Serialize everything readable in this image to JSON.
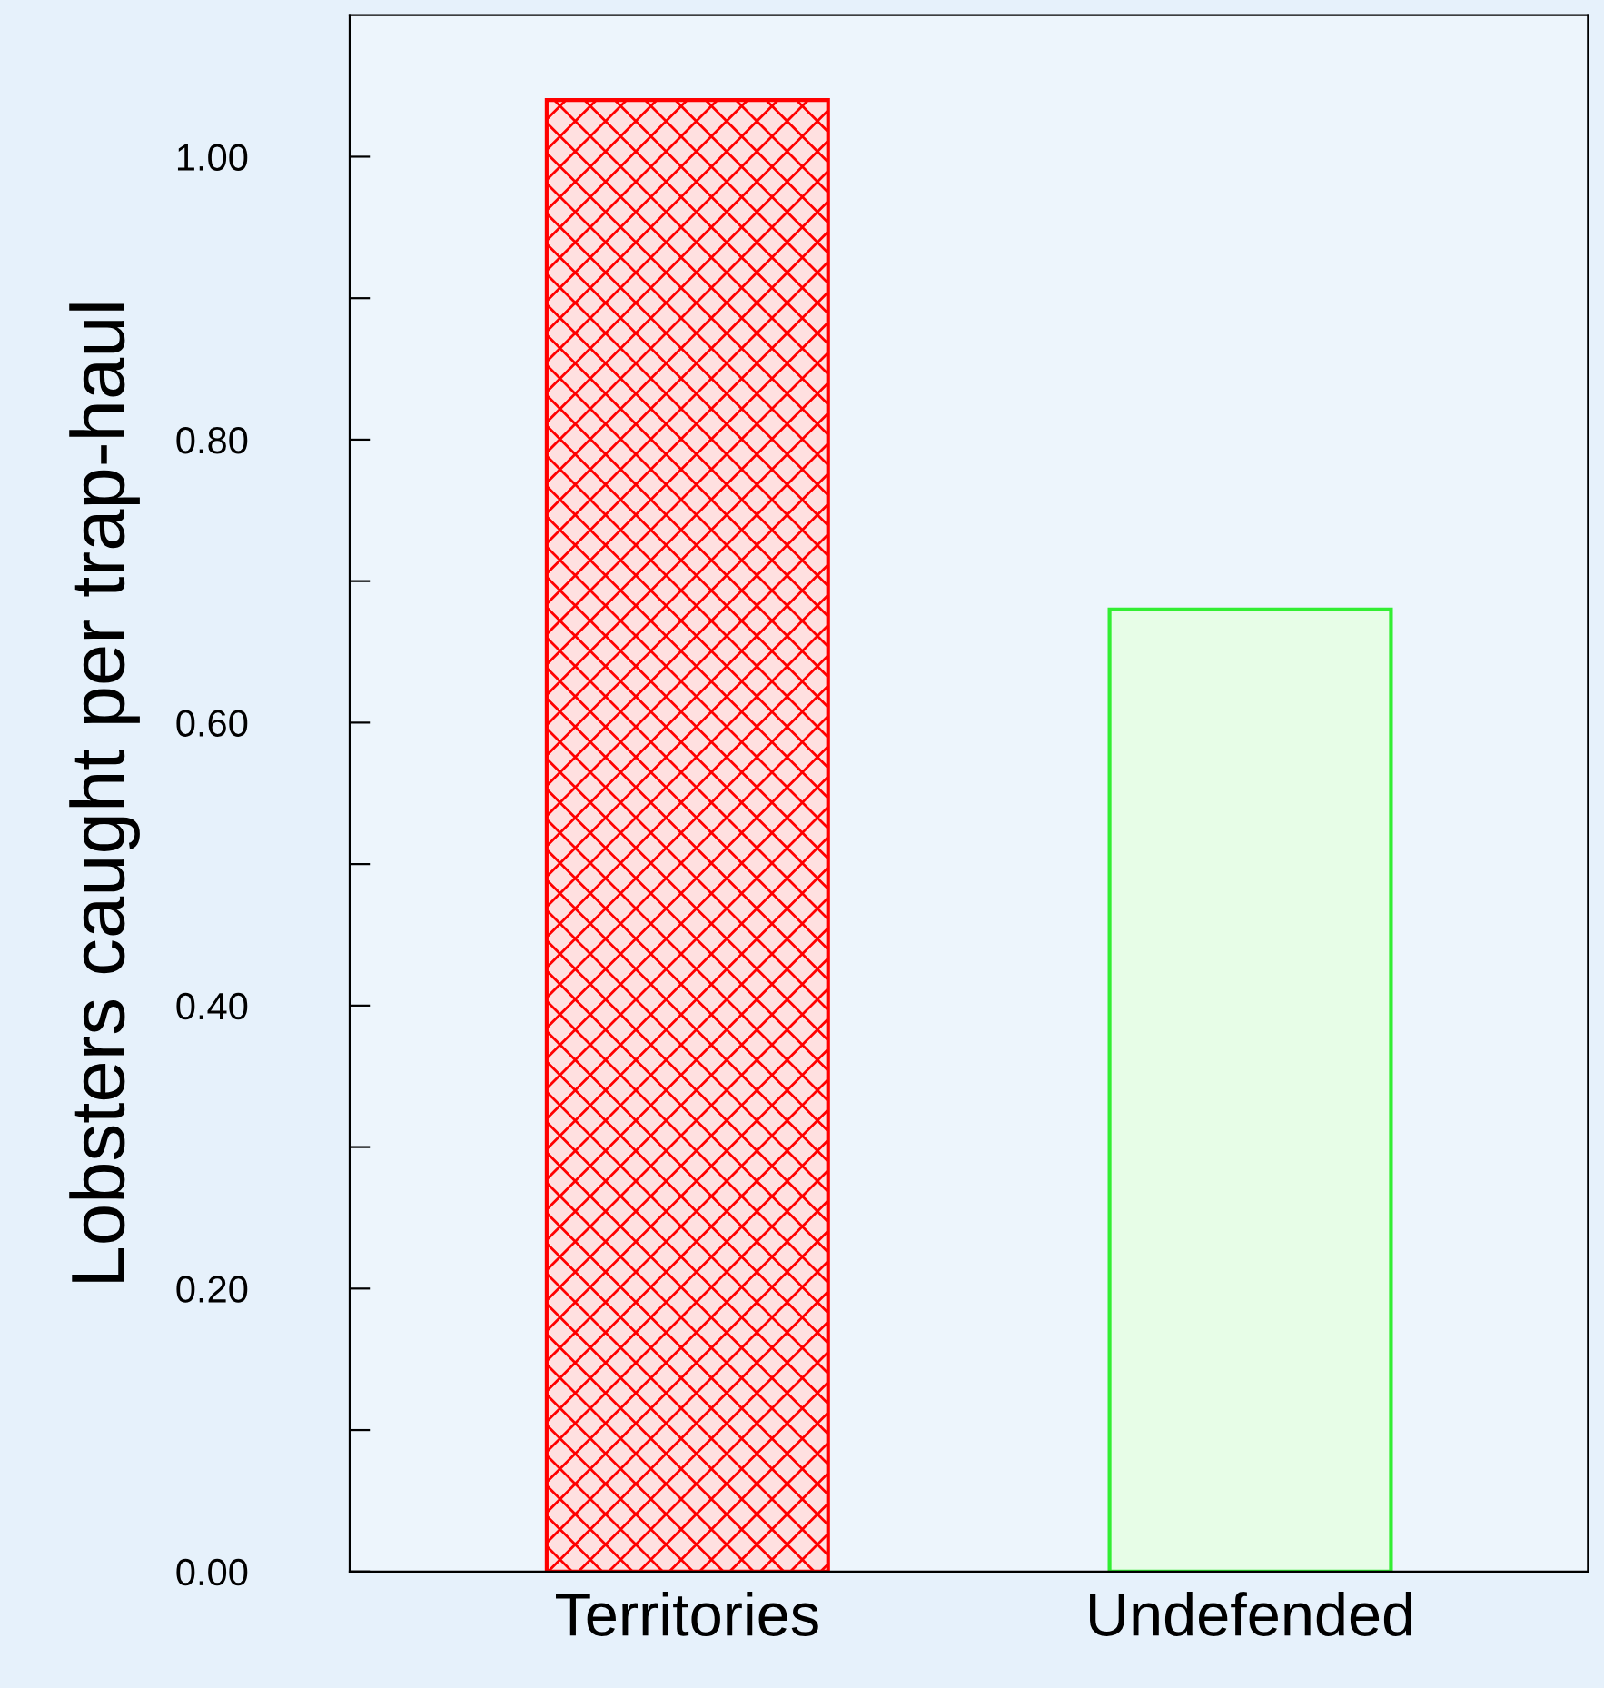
{
  "chart_data": {
    "type": "bar",
    "ylabel": "Lobsters caught per trap-haul",
    "categories": [
      "Territories",
      "Undefended"
    ],
    "values": [
      1.04,
      0.68
    ],
    "colors": [
      "#ff0000",
      "#33ee33"
    ],
    "ylim": [
      0,
      1.1
    ],
    "yticks": [
      {
        "value": 0,
        "label": "0.00"
      },
      {
        "value": 0.1,
        "label": null
      },
      {
        "value": 0.2,
        "label": "0.20"
      },
      {
        "value": 0.3,
        "label": null
      },
      {
        "value": 0.4,
        "label": "0.40"
      },
      {
        "value": 0.5,
        "label": null
      },
      {
        "value": 0.6,
        "label": "0.60"
      },
      {
        "value": 0.7,
        "label": null
      },
      {
        "value": 0.8,
        "label": "0.80"
      },
      {
        "value": 0.9,
        "label": null
      },
      {
        "value": 1.0,
        "label": "1.00"
      }
    ],
    "grid": false,
    "legend": false
  }
}
